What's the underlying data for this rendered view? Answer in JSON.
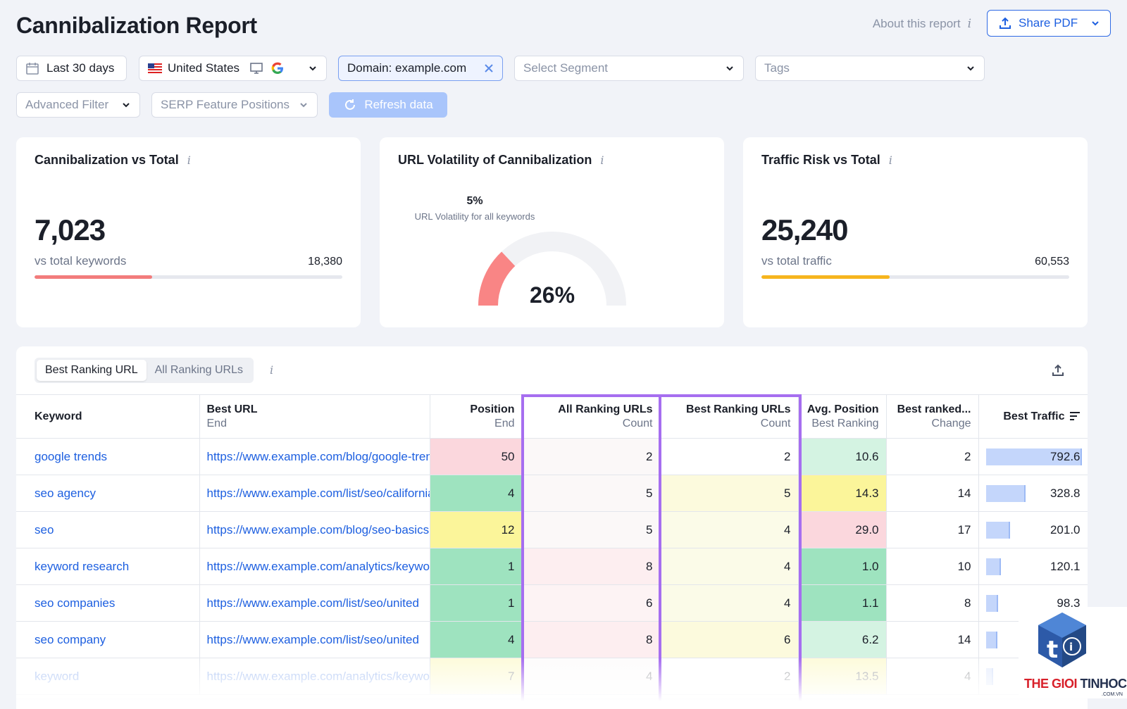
{
  "header": {
    "title": "Cannibalization Report",
    "about_label": "About this report",
    "info_glyph": "i",
    "share_label": "Share PDF"
  },
  "filters": {
    "date_range": "Last 30 days",
    "country": "United States",
    "domain": "Domain: example.com",
    "segment_placeholder": "Select Segment",
    "tags_placeholder": "Tags",
    "advanced_filter": "Advanced Filter",
    "serp_feature": "SERP Feature Positions",
    "refresh": "Refresh data"
  },
  "cards": {
    "cannibalization": {
      "title": "Cannibalization vs Total",
      "value": "7,023",
      "label": "vs total keywords",
      "total": "18,380",
      "progress_fraction": 0.382,
      "color": "#f27c7c"
    },
    "volatility": {
      "title": "URL Volatility of Cannibalization",
      "all_value": "5%",
      "all_label": "URL Volatility for all keywords",
      "value": "26%",
      "gauge_fraction": 0.26,
      "color": "#f98585"
    },
    "traffic": {
      "title": "Traffic Risk vs Total",
      "value": "25,240",
      "label": "vs total traffic",
      "total": "60,553",
      "progress_fraction": 0.417,
      "color": "#f6b51e"
    }
  },
  "table": {
    "tabs": [
      "Best Ranking URL",
      "All Ranking URLs"
    ],
    "columns": [
      {
        "title": "Keyword",
        "sub": ""
      },
      {
        "title": "Best URL",
        "sub": "End"
      },
      {
        "title": "Position",
        "sub": "End"
      },
      {
        "title": "All Ranking URLs",
        "sub": "Count"
      },
      {
        "title": "Best Ranking URLs",
        "sub": "Count"
      },
      {
        "title": "Avg. Position",
        "sub": "Best Ranking"
      },
      {
        "title": "Best ranked...",
        "sub": "Change"
      },
      {
        "title": "Best Traffic",
        "sub": ""
      }
    ],
    "rows": [
      {
        "keyword": "google trends",
        "url": "https://www.example.com/blog/google-trends",
        "position": "50",
        "all_urls": "2",
        "best_urls": "2",
        "avg_pos": "10.6",
        "change": "2",
        "traffic": "792.6",
        "traffic_value": 792.6
      },
      {
        "keyword": "seo agency",
        "url": "https://www.example.com/list/seo/california",
        "position": "4",
        "all_urls": "5",
        "best_urls": "5",
        "avg_pos": "14.3",
        "change": "14",
        "traffic": "328.8",
        "traffic_value": 328.8
      },
      {
        "keyword": "seo",
        "url": "https://www.example.com/blog/seo-basics",
        "position": "12",
        "all_urls": "5",
        "best_urls": "4",
        "avg_pos": "29.0",
        "change": "17",
        "traffic": "201.0",
        "traffic_value": 201.0
      },
      {
        "keyword": "keyword research",
        "url": "https://www.example.com/analytics/keyword",
        "position": "1",
        "all_urls": "8",
        "best_urls": "4",
        "avg_pos": "1.0",
        "change": "10",
        "traffic": "120.1",
        "traffic_value": 120.1
      },
      {
        "keyword": "seo companies",
        "url": "https://www.example.com/list/seo/united",
        "position": "1",
        "all_urls": "6",
        "best_urls": "4",
        "avg_pos": "1.1",
        "change": "8",
        "traffic": "98.3",
        "traffic_value": 98.3
      },
      {
        "keyword": "seo company",
        "url": "https://www.example.com/list/seo/united",
        "position": "4",
        "all_urls": "8",
        "best_urls": "6",
        "avg_pos": "6.2",
        "change": "14",
        "traffic": "92.",
        "traffic_value": 92
      },
      {
        "keyword": "keyword",
        "url": "https://www.example.com/analytics/keyword",
        "position": "7",
        "all_urls": "4",
        "best_urls": "2",
        "avg_pos": "13.5",
        "change": "4",
        "traffic": "",
        "traffic_value": 60
      }
    ]
  },
  "watermark": {
    "brand_red": "THE GIOI",
    "brand_dark": "TINHOC",
    "domain": ".COM.VN"
  }
}
